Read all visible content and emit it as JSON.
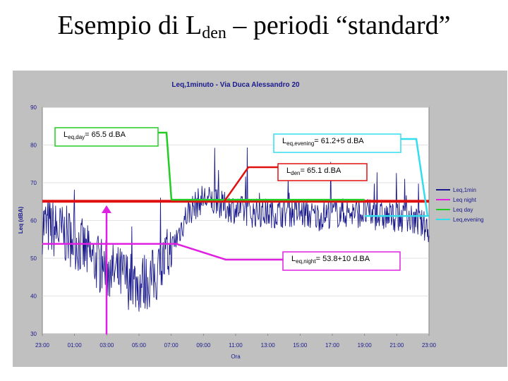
{
  "slide": {
    "title_main": "Esempio di L",
    "title_sub": "den",
    "title_rest": " – periodi “standard”"
  },
  "chart_data": {
    "type": "line",
    "title": "Leq,1minuto - Via Duca Alessandro 20",
    "xlabel": "Ora",
    "ylabel": "Leq (dBA)",
    "ylim": [
      30,
      90
    ],
    "yticks": [
      "30",
      "40",
      "50",
      "60",
      "70",
      "80",
      "90"
    ],
    "xticks": [
      "23:00",
      "01:00",
      "03:00",
      "05:00",
      "07:00",
      "09:00",
      "11:00",
      "13:00",
      "15:00",
      "17:00",
      "19:00",
      "21:00",
      "23:00"
    ],
    "grid": true,
    "legend_position": "right",
    "series": [
      {
        "name": "Leq,1min",
        "color": "#1a1a8c",
        "x": [
          "23:00",
          "00:00",
          "01:00",
          "02:00",
          "03:00",
          "04:00",
          "05:00",
          "06:00",
          "07:00",
          "08:00",
          "09:00",
          "10:00",
          "11:00",
          "12:00",
          "13:00",
          "14:00",
          "15:00",
          "16:00",
          "17:00",
          "18:00",
          "19:00",
          "20:00",
          "21:00",
          "22:00",
          "23:00"
        ],
        "values": [
          59,
          57,
          55,
          50,
          47,
          45,
          43,
          45,
          52,
          62,
          66,
          64,
          63,
          62,
          62,
          62,
          62,
          61,
          62,
          62,
          62,
          61,
          61,
          60,
          58
        ]
      },
      {
        "name": "Leq night",
        "color": "#e020e0",
        "x": [
          "23:00",
          "07:00"
        ],
        "values": [
          53.8,
          53.8
        ]
      },
      {
        "name": "Leq day",
        "color": "#22cc22",
        "x": [
          "07:00",
          "19:00"
        ],
        "values": [
          65.5,
          65.5
        ]
      },
      {
        "name": "Leq,evening",
        "color": "#33ddee",
        "x": [
          "19:00",
          "23:00"
        ],
        "values": [
          61.2,
          61.2
        ]
      },
      {
        "name": "Lden",
        "color": "#e01010",
        "x": [
          "23:00",
          "23:00"
        ],
        "values": [
          65.1,
          65.1
        ]
      }
    ],
    "annotations": [
      {
        "id": "day",
        "text_base": "L",
        "text_sub": "eq,day",
        "text_rest": "= 65.5 d.BA"
      },
      {
        "id": "evening",
        "text_base": "L",
        "text_sub": "eq,evening",
        "text_rest": "= 61.2+5 d.BA"
      },
      {
        "id": "lden",
        "text_base": "L",
        "text_sub": "den",
        "text_rest": "= 65.1 d.BA"
      },
      {
        "id": "night",
        "text_base": "L",
        "text_sub": "eq,night",
        "text_rest": "= 53.8+10 d.BA"
      }
    ],
    "legend": [
      {
        "label": "Leq,1min",
        "color": "#1a1a8c"
      },
      {
        "label": "Leq night",
        "color": "#e020e0"
      },
      {
        "label": "Leq day",
        "color": "#22cc22"
      },
      {
        "label": "Leq,evening",
        "color": "#33ddee"
      }
    ]
  }
}
